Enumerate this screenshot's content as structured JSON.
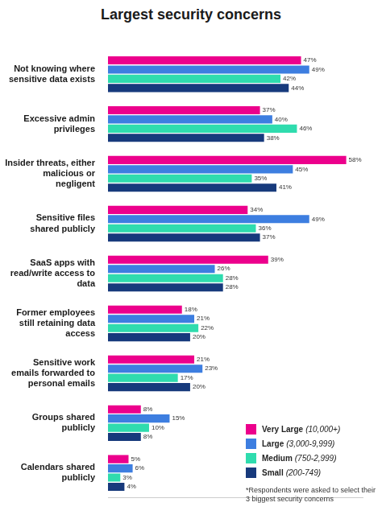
{
  "chart_data": {
    "type": "bar",
    "title": "Largest security concerns",
    "orientation": "horizontal",
    "categories": [
      "Not knowing where sensitive data exists",
      "Excessive admin privileges",
      "Insider threats, either malicious or negligent",
      "Sensitive files shared publicly",
      "SaaS apps with read/write access to data",
      "Former employees still retaining data access",
      "Sensitive work emails forwarded to personal emails",
      "Groups shared publicly",
      "Calendars shared publicly"
    ],
    "series": [
      {
        "name": "Very Large (10,000+)",
        "color": "#ec008c",
        "values": [
          47,
          37,
          58,
          34,
          39,
          18,
          21,
          8,
          5
        ],
        "value_labels": [
          "47%",
          "37%",
          "58%",
          "34%",
          "39%",
          "18%",
          "21%",
          "8%",
          "5%"
        ]
      },
      {
        "name": "Large (3,000-9,999)",
        "color": "#3d7ee0",
        "values": [
          49,
          40,
          45,
          49,
          26,
          21,
          23,
          15,
          6
        ],
        "value_labels": [
          "49%",
          "40%",
          "45%",
          "49%",
          "26%",
          "21%",
          "23%",
          "15%",
          "6%"
        ]
      },
      {
        "name": "Medium (750-2,999)",
        "color": "#2fdcae",
        "values": [
          42,
          46,
          35,
          36,
          28,
          22,
          17,
          10,
          3
        ],
        "value_labels": [
          "42%",
          "46%",
          "35%",
          "36%",
          "28%",
          "22%",
          "17%",
          "10%",
          "3%"
        ]
      },
      {
        "name": "Small (200-749)",
        "color": "#173a7c",
        "values": [
          44,
          38,
          41,
          37,
          28,
          20,
          20,
          8,
          4
        ],
        "value_labels": [
          "44%",
          "38%",
          "41%",
          "37%",
          "28%",
          "20%",
          "20%",
          "8%",
          "4%"
        ]
      }
    ],
    "xlim": [
      0,
      62
    ],
    "grid": false,
    "tick_labels": "y",
    "data_labels": true,
    "legend": "bottom right",
    "annotations": [
      "*Respondents were asked to select their 3 biggest security concerns"
    ]
  }
}
